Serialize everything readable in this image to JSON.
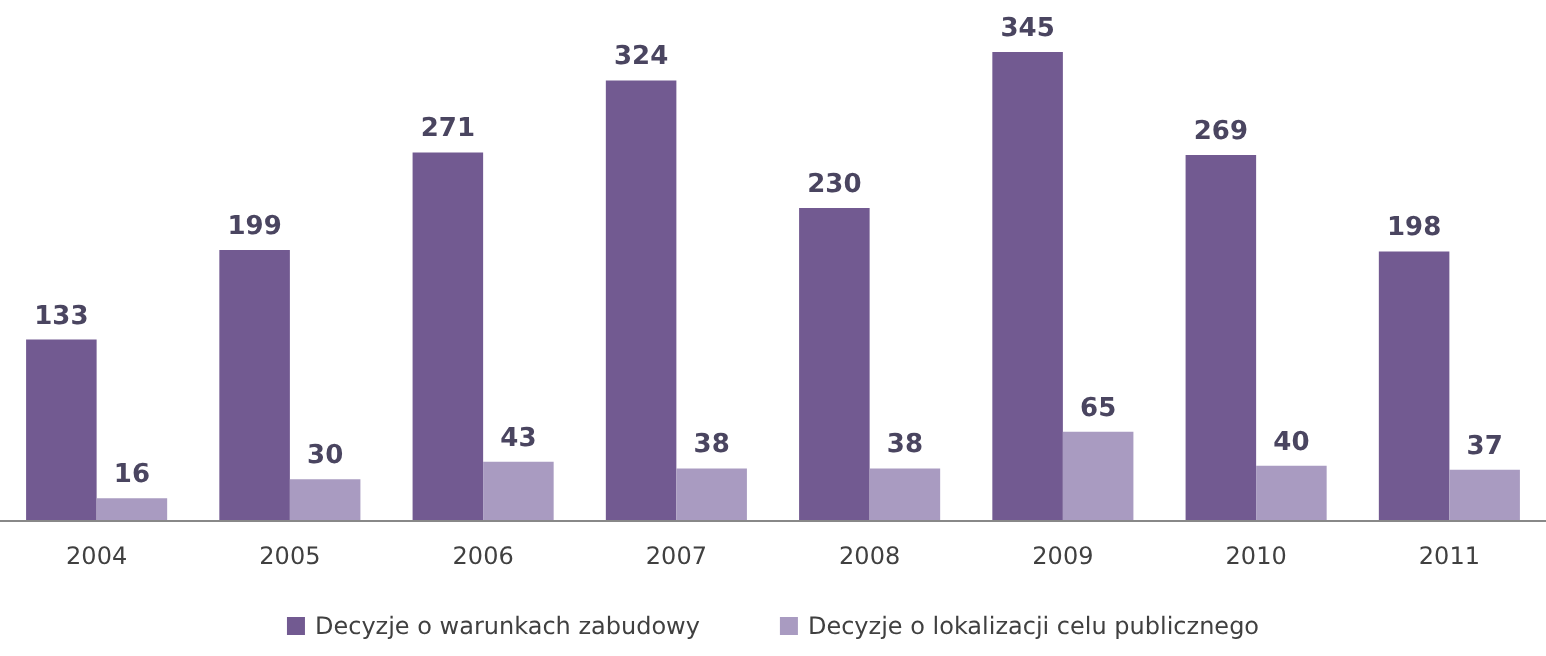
{
  "chart_data": {
    "type": "bar",
    "categories": [
      "2004",
      "2005",
      "2006",
      "2007",
      "2008",
      "2009",
      "2010",
      "2011"
    ],
    "series": [
      {
        "name": "Decyzje o warunkach zabudowy",
        "color": "#725a91",
        "values": [
          133,
          199,
          271,
          324,
          230,
          345,
          269,
          198
        ]
      },
      {
        "name": "Decyzje o lokalizacji celu publicznego",
        "color": "#a99bc1",
        "values": [
          16,
          30,
          43,
          38,
          38,
          65,
          40,
          37
        ]
      }
    ],
    "data_labels": true,
    "legend": "bottom",
    "grid": false
  }
}
